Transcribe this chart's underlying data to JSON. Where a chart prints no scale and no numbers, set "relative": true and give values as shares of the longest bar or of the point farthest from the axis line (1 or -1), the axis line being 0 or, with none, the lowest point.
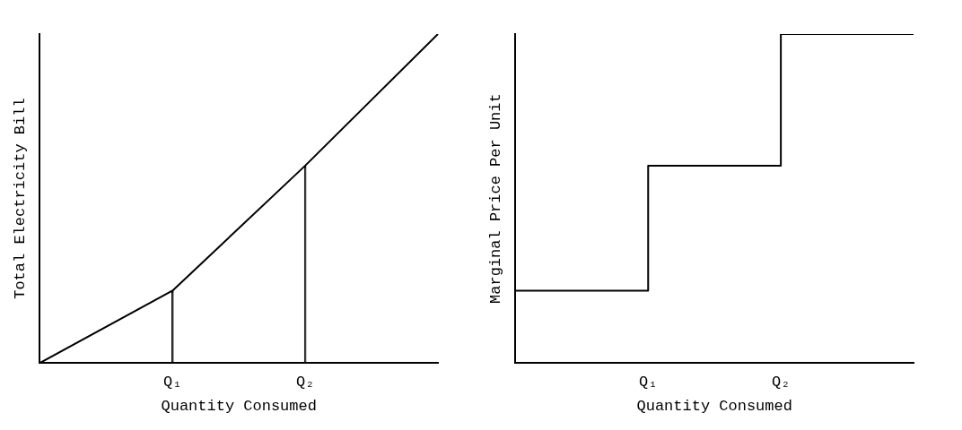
{
  "chart_data": [
    {
      "type": "line",
      "xlabel": "Quantity Consumed",
      "ylabel": "Total Electricity Bill",
      "relative": true,
      "categories": [
        null,
        "Q₁",
        "Q₂",
        null
      ],
      "legend": false,
      "series": [
        {
          "color": "#000000",
          "values": [
            0,
            0.22,
            0.6,
            1
          ]
        },
        {
          "type": "bar",
          "color": "#000000",
          "values": [
            null,
            0.22,
            0.6,
            null
          ]
        }
      ]
    },
    {
      "type": "step",
      "xlabel": "Quantity Consumed",
      "ylabel": "Marginal Price Per Unit",
      "relative": true,
      "categories": [
        null,
        "Q₁",
        "Q₂",
        null
      ],
      "legend": false,
      "series": [
        {
          "color": "#000000",
          "values": [
            0.22,
            0.6,
            1,
            1
          ]
        }
      ]
    }
  ]
}
